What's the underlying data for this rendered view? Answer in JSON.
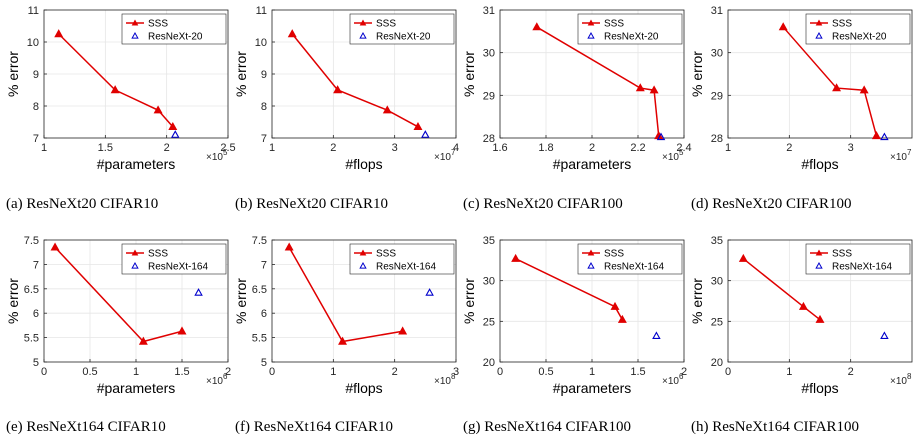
{
  "colors": {
    "sss": "#e00000",
    "baseline": "#0000cc",
    "axis": "#262626",
    "grid": "#e6e6e6"
  },
  "chart_data": [
    {
      "type": "line",
      "caption": "(a) ResNeXt20 CIFAR10",
      "xlabel": "#parameters",
      "ylabel": "% error",
      "x_exponent": "5",
      "xlim": [
        1,
        2.5
      ],
      "ylim": [
        7,
        11
      ],
      "xticks": [
        "1",
        "1.5",
        "2",
        "2.5"
      ],
      "xtick_values": [
        1,
        1.5,
        2,
        2.5
      ],
      "yticks": [
        "7",
        "8",
        "9",
        "10",
        "11"
      ],
      "ytick_values": [
        7,
        8,
        9,
        10,
        11
      ],
      "series": [
        {
          "name": "SSS",
          "marker": "triangle-filled",
          "x": [
            1.12,
            1.58,
            1.93,
            2.05
          ],
          "y": [
            10.25,
            8.5,
            7.87,
            7.35
          ]
        },
        {
          "name": "ResNeXt-20",
          "marker": "triangle-open",
          "x": [
            2.07
          ],
          "y": [
            7.1
          ]
        }
      ],
      "legend": "top-right"
    },
    {
      "type": "line",
      "caption": "(b) ResNeXt20 CIFAR10",
      "xlabel": "#flops",
      "ylabel": "% error",
      "x_exponent": "7",
      "xlim": [
        1,
        4
      ],
      "ylim": [
        7,
        11
      ],
      "xticks": [
        "1",
        "2",
        "3",
        "4"
      ],
      "xtick_values": [
        1,
        2,
        3,
        4
      ],
      "yticks": [
        "7",
        "8",
        "9",
        "10",
        "11"
      ],
      "ytick_values": [
        7,
        8,
        9,
        10,
        11
      ],
      "series": [
        {
          "name": "SSS",
          "marker": "triangle-filled",
          "x": [
            1.33,
            2.07,
            2.88,
            3.38
          ],
          "y": [
            10.25,
            8.5,
            7.87,
            7.35
          ]
        },
        {
          "name": "ResNeXt-20",
          "marker": "triangle-open",
          "x": [
            3.5
          ],
          "y": [
            7.1
          ]
        }
      ],
      "legend": "top-right"
    },
    {
      "type": "line",
      "caption": "(c) ResNeXt20 CIFAR100",
      "xlabel": "#parameters",
      "ylabel": "% error",
      "x_exponent": "5",
      "xlim": [
        1.6,
        2.4
      ],
      "ylim": [
        28,
        31
      ],
      "xticks": [
        "1.6",
        "1.8",
        "2",
        "2.2",
        "2.4"
      ],
      "xtick_values": [
        1.6,
        1.8,
        2,
        2.2,
        2.4
      ],
      "yticks": [
        "28",
        "29",
        "30",
        "31"
      ],
      "ytick_values": [
        28,
        29,
        30,
        31
      ],
      "series": [
        {
          "name": "SSS",
          "marker": "triangle-filled",
          "x": [
            1.76,
            2.21,
            2.27,
            2.29
          ],
          "y": [
            30.6,
            29.17,
            29.12,
            28.05
          ]
        },
        {
          "name": "ResNeXt-20",
          "marker": "triangle-open",
          "x": [
            2.3
          ],
          "y": [
            28.02
          ]
        }
      ],
      "legend": "top-right"
    },
    {
      "type": "line",
      "caption": "(d) ResNeXt20 CIFAR100",
      "xlabel": "#flops",
      "ylabel": "% error",
      "x_exponent": "7",
      "xlim": [
        1,
        4
      ],
      "ylim": [
        28,
        31
      ],
      "xticks": [
        "1",
        "2",
        "3"
      ],
      "xtick_values": [
        1,
        2,
        3
      ],
      "yticks": [
        "28",
        "29",
        "30",
        "31"
      ],
      "ytick_values": [
        28,
        29,
        30,
        31
      ],
      "series": [
        {
          "name": "SSS",
          "marker": "triangle-filled",
          "x": [
            1.9,
            2.77,
            3.22,
            3.42
          ],
          "y": [
            30.6,
            29.17,
            29.12,
            28.05
          ]
        },
        {
          "name": "ResNeXt-20",
          "marker": "triangle-open",
          "x": [
            3.55
          ],
          "y": [
            28.02
          ]
        }
      ],
      "legend": "top-right"
    },
    {
      "type": "line",
      "caption": "(e) ResNeXt164 CIFAR10",
      "xlabel": "#parameters",
      "ylabel": "% error",
      "x_exponent": "6",
      "xlim": [
        0,
        2
      ],
      "ylim": [
        5,
        7.5
      ],
      "xticks": [
        "0",
        "0.5",
        "1",
        "1.5",
        "2"
      ],
      "xtick_values": [
        0,
        0.5,
        1,
        1.5,
        2
      ],
      "yticks": [
        "5",
        "5.5",
        "6",
        "6.5",
        "7",
        "7.5"
      ],
      "ytick_values": [
        5,
        5.5,
        6,
        6.5,
        7,
        7.5
      ],
      "series": [
        {
          "name": "SSS",
          "marker": "triangle-filled",
          "x": [
            0.12,
            1.08,
            1.5
          ],
          "y": [
            7.35,
            5.42,
            5.63
          ]
        },
        {
          "name": "ResNeXt-164",
          "marker": "triangle-open",
          "x": [
            1.68
          ],
          "y": [
            6.42
          ]
        }
      ],
      "legend": "top-right"
    },
    {
      "type": "line",
      "caption": "(f) ResNeXt164 CIFAR10",
      "xlabel": "#flops",
      "ylabel": "% error",
      "x_exponent": "8",
      "xlim": [
        0,
        3
      ],
      "ylim": [
        5,
        7.5
      ],
      "xticks": [
        "0",
        "1",
        "2",
        "3"
      ],
      "xtick_values": [
        0,
        1,
        2,
        3
      ],
      "yticks": [
        "5",
        "5.5",
        "6",
        "6.5",
        "7",
        "7.5"
      ],
      "ytick_values": [
        5,
        5.5,
        6,
        6.5,
        7,
        7.5
      ],
      "series": [
        {
          "name": "SSS",
          "marker": "triangle-filled",
          "x": [
            0.28,
            1.15,
            2.13
          ],
          "y": [
            7.35,
            5.42,
            5.63
          ]
        },
        {
          "name": "ResNeXt-164",
          "marker": "triangle-open",
          "x": [
            2.57
          ],
          "y": [
            6.42
          ]
        }
      ],
      "legend": "top-right"
    },
    {
      "type": "line",
      "caption": "(g) ResNeXt164 CIFAR100",
      "xlabel": "#parameters",
      "ylabel": "% error",
      "x_exponent": "6",
      "xlim": [
        0,
        2
      ],
      "ylim": [
        20,
        35
      ],
      "xticks": [
        "0",
        "0.5",
        "1",
        "1.5",
        "2"
      ],
      "xtick_values": [
        0,
        0.5,
        1,
        1.5,
        2
      ],
      "yticks": [
        "20",
        "25",
        "30",
        "35"
      ],
      "ytick_values": [
        20,
        25,
        30,
        35
      ],
      "series": [
        {
          "name": "SSS",
          "marker": "triangle-filled",
          "x": [
            0.17,
            1.25,
            1.33
          ],
          "y": [
            32.7,
            26.8,
            25.2
          ]
        },
        {
          "name": "ResNeXt-164",
          "marker": "triangle-open",
          "x": [
            1.7
          ],
          "y": [
            23.2
          ]
        }
      ],
      "legend": "top-right"
    },
    {
      "type": "line",
      "caption": "(h) ResNeXt164 CIFAR100",
      "xlabel": "#flops",
      "ylabel": "% error",
      "x_exponent": "8",
      "xlim": [
        0,
        3
      ],
      "ylim": [
        20,
        35
      ],
      "xticks": [
        "0",
        "1",
        "2"
      ],
      "xtick_values": [
        0,
        1,
        2
      ],
      "yticks": [
        "20",
        "25",
        "30",
        "35"
      ],
      "ytick_values": [
        20,
        25,
        30,
        35
      ],
      "series": [
        {
          "name": "SSS",
          "marker": "triangle-filled",
          "x": [
            0.25,
            1.23,
            1.5
          ],
          "y": [
            32.7,
            26.8,
            25.2
          ]
        },
        {
          "name": "ResNeXt-164",
          "marker": "triangle-open",
          "x": [
            2.55
          ],
          "y": [
            23.2
          ]
        }
      ],
      "legend": "top-right"
    }
  ]
}
